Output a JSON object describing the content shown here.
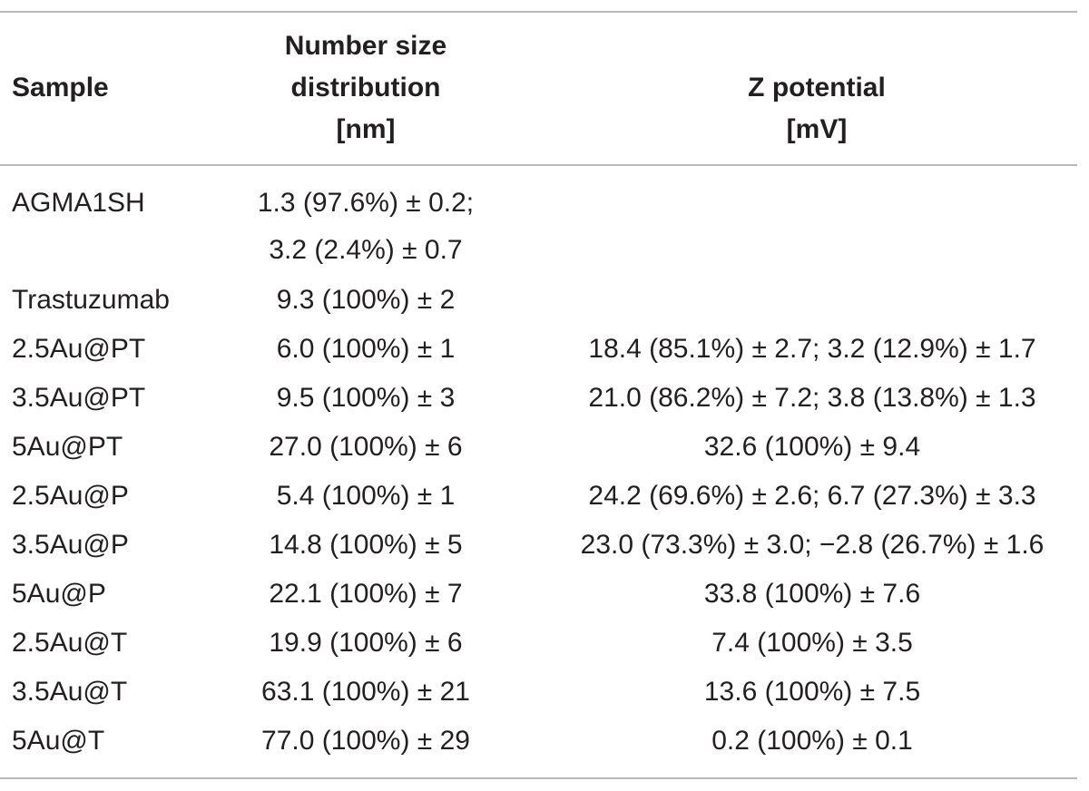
{
  "table": {
    "headers": {
      "sample": "Sample",
      "size_line1": "Number size",
      "size_line2": "distribution",
      "size_line3": "[nm]",
      "zeta_line1": "Z potential",
      "zeta_line2": "[mV]"
    },
    "rows": [
      {
        "sample": "AGMA1SH",
        "size": "1.3 (97.6%) ± 0.2;",
        "size2": "3.2 (2.4%) ± 0.7",
        "zeta": ""
      },
      {
        "sample": "Trastuzumab",
        "size": "9.3 (100%) ± 2",
        "zeta": ""
      },
      {
        "sample": "2.5Au@PT",
        "size": "6.0 (100%) ± 1",
        "zeta": "18.4 (85.1%) ± 2.7; 3.2 (12.9%) ± 1.7"
      },
      {
        "sample": "3.5Au@PT",
        "size": "9.5 (100%) ± 3",
        "zeta": "21.0 (86.2%) ± 7.2; 3.8 (13.8%) ± 1.3"
      },
      {
        "sample": "5Au@PT",
        "size": "27.0 (100%) ± 6",
        "zeta": "32.6 (100%) ± 9.4"
      },
      {
        "sample": "2.5Au@P",
        "size": "5.4 (100%) ± 1",
        "zeta": "24.2 (69.6%) ± 2.6; 6.7 (27.3%) ± 3.3"
      },
      {
        "sample": "3.5Au@P",
        "size": "14.8 (100%) ± 5",
        "zeta": "23.0 (73.3%) ± 3.0; −2.8 (26.7%) ± 1.6"
      },
      {
        "sample": "5Au@P",
        "size": "22.1 (100%) ± 7",
        "zeta": "33.8 (100%) ± 7.6"
      },
      {
        "sample": "2.5Au@T",
        "size": "19.9 (100%) ± 6",
        "zeta": "7.4 (100%) ± 3.5"
      },
      {
        "sample": "3.5Au@T",
        "size": "63.1 (100%) ± 21",
        "zeta": "13.6 (100%) ± 7.5"
      },
      {
        "sample": "5Au@T",
        "size": "77.0 (100%) ± 29",
        "zeta": "0.2 (100%) ± 0.1"
      }
    ]
  }
}
